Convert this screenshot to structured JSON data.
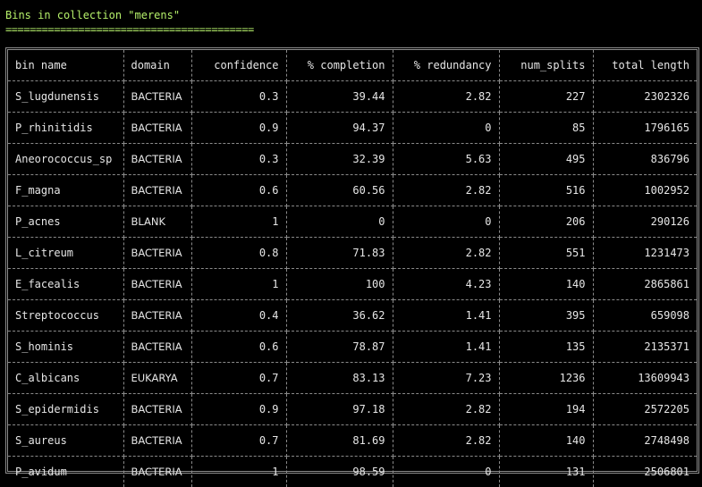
{
  "header": {
    "title": "Bins in collection \"merens\"",
    "underline": "========================================="
  },
  "table": {
    "columns": [
      "bin name",
      "domain",
      "confidence",
      "% completion",
      "% redundancy",
      "num_splits",
      "total length"
    ],
    "rows": [
      [
        "S_lugdunensis",
        "BACTERIA",
        "0.3",
        "39.44",
        "2.82",
        "227",
        "2302326"
      ],
      [
        "P_rhinitidis",
        "BACTERIA",
        "0.9",
        "94.37",
        "0",
        "85",
        "1796165"
      ],
      [
        "Aneorococcus_sp",
        "BACTERIA",
        "0.3",
        "32.39",
        "5.63",
        "495",
        "836796"
      ],
      [
        "F_magna",
        "BACTERIA",
        "0.6",
        "60.56",
        "2.82",
        "516",
        "1002952"
      ],
      [
        "P_acnes",
        "BLANK",
        "1",
        "0",
        "0",
        "206",
        "290126"
      ],
      [
        "L_citreum",
        "BACTERIA",
        "0.8",
        "71.83",
        "2.82",
        "551",
        "1231473"
      ],
      [
        "E_facealis",
        "BACTERIA",
        "1",
        "100",
        "4.23",
        "140",
        "2865861"
      ],
      [
        "Streptococcus",
        "BACTERIA",
        "0.4",
        "36.62",
        "1.41",
        "395",
        "659098"
      ],
      [
        "S_hominis",
        "BACTERIA",
        "0.6",
        "78.87",
        "1.41",
        "135",
        "2135371"
      ],
      [
        "C_albicans",
        "EUKARYA",
        "0.7",
        "83.13",
        "7.23",
        "1236",
        "13609943"
      ],
      [
        "S_epidermidis",
        "BACTERIA",
        "0.9",
        "97.18",
        "2.82",
        "194",
        "2572205"
      ],
      [
        "S_aureus",
        "BACTERIA",
        "0.7",
        "81.69",
        "2.82",
        "140",
        "2748498"
      ],
      [
        "P_avidum",
        "BACTERIA",
        "1",
        "98.59",
        "0",
        "131",
        "2506801"
      ]
    ]
  },
  "colors": {
    "background": "#000000",
    "title": "#b5f06a",
    "text": "#e6e6e6",
    "border": "#8a8a8a"
  }
}
